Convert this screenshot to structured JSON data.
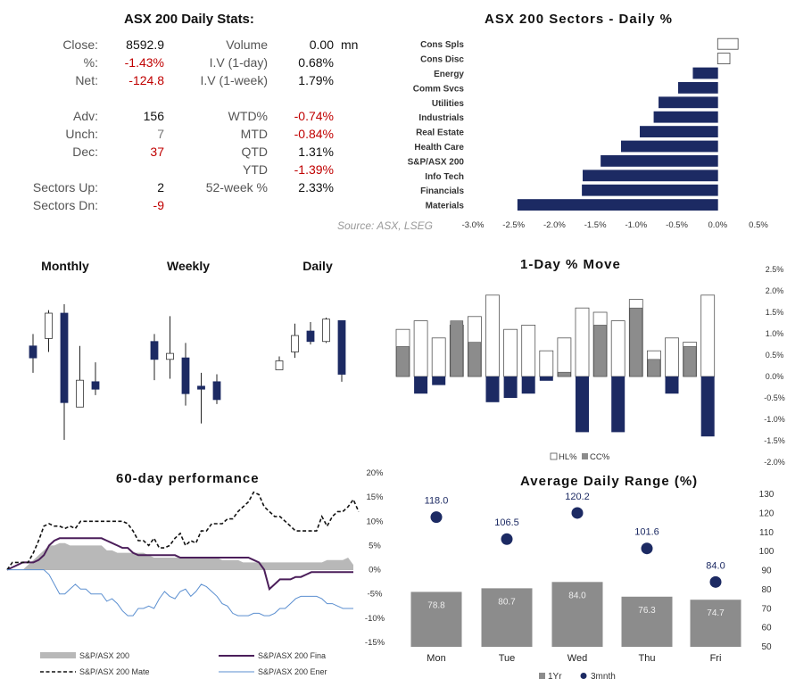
{
  "stats": {
    "title": "ASX 200 Daily Stats:",
    "rows": [
      {
        "label": "Close:",
        "value": "8592.9",
        "tone": "val",
        "label2": "Volume",
        "value2": "0.00",
        "tone2": "val",
        "unit2": "mn"
      },
      {
        "label": "%:",
        "value": "-1.43%",
        "tone": "neg",
        "label2": "I.V (1-day)",
        "value2": "0.68%",
        "tone2": "val"
      },
      {
        "label": "Net:",
        "value": "-124.8",
        "tone": "neg",
        "label2": "I.V (1-week)",
        "value2": "1.79%",
        "tone2": "val"
      },
      {
        "label": "Adv:",
        "value": "156",
        "tone": "val",
        "label2": "WTD%",
        "value2": "-0.74%",
        "tone2": "neg"
      },
      {
        "label": "Unch:",
        "value": "7",
        "tone": "gray",
        "label2": "MTD",
        "value2": "-0.84%",
        "tone2": "neg"
      },
      {
        "label": "Dec:",
        "value": "37",
        "tone": "neg",
        "label2": "QTD",
        "value2": "1.31%",
        "tone2": "val"
      },
      {
        "label": "",
        "value": "",
        "tone": "val",
        "label2": "YTD",
        "value2": "-1.39%",
        "tone2": "neg"
      },
      {
        "label": "Sectors Up:",
        "value": "2",
        "tone": "val",
        "label2": "52-week %",
        "value2": "2.33%",
        "tone2": "val"
      },
      {
        "label": "Sectors Dn:",
        "value": "-9",
        "tone": "neg",
        "label2": "",
        "value2": "",
        "tone2": "val"
      }
    ]
  },
  "source": "Source: ASX, LSEG",
  "colors": {
    "navy": "#1c2a63",
    "gray": "#8c8c8c",
    "lightgray": "#b8b8b8",
    "purple": "#4b1e5a",
    "blue": "#5b8fd0"
  },
  "chart_data": [
    {
      "id": "sectors",
      "type": "bar",
      "title": "ASX 200 Sectors - Daily %",
      "orientation": "horizontal",
      "categories": [
        "Cons Spls",
        "Cons Disc",
        "Energy",
        "Comm Svcs",
        "Utilities",
        "Industrials",
        "Real Estate",
        "Health Care",
        "S&P/ASX 200",
        "Info Tech",
        "Financials",
        "Materials"
      ],
      "values": [
        0.25,
        0.15,
        -0.3,
        -0.48,
        -0.72,
        -0.78,
        -0.95,
        -1.18,
        -1.43,
        -1.65,
        -1.66,
        -2.45
      ],
      "xlim": [
        -3.0,
        0.5
      ],
      "xticks": [
        "-3.0%",
        "-2.5%",
        "-2.0%",
        "-1.5%",
        "-1.0%",
        "-0.5%",
        "0.0%",
        "0.5%"
      ]
    },
    {
      "id": "candles",
      "type": "candlestick",
      "panels": [
        {
          "title": "Monthly",
          "candles": [
            {
              "o": 1.3,
              "h": 2.1,
              "l": -0.5,
              "c": 0.5
            },
            {
              "o": 1.8,
              "h": 3.7,
              "l": 0.9,
              "c": 3.5
            },
            {
              "o": 3.5,
              "h": 4.1,
              "l": -5.0,
              "c": -2.5
            },
            {
              "o": -2.8,
              "h": 1.3,
              "l": -2.8,
              "c": -1.0
            },
            {
              "o": -1.1,
              "h": 0.2,
              "l": -2.0,
              "c": -1.6
            }
          ]
        },
        {
          "title": "Weekly",
          "candles": [
            {
              "o": 1.6,
              "h": 2.1,
              "l": -1.0,
              "c": 0.4
            },
            {
              "o": 0.4,
              "h": 3.3,
              "l": -0.9,
              "c": 0.8
            },
            {
              "o": 0.5,
              "h": 1.5,
              "l": -2.7,
              "c": -1.9
            },
            {
              "o": -1.4,
              "h": -0.5,
              "l": -3.9,
              "c": -1.6
            },
            {
              "o": -1.1,
              "h": -0.6,
              "l": -2.6,
              "c": -2.3
            }
          ]
        },
        {
          "title": "Daily",
          "candles": [
            {
              "o": -0.3,
              "h": 0.6,
              "l": -0.3,
              "c": 0.3
            },
            {
              "o": 0.9,
              "h": 2.8,
              "l": 0.5,
              "c": 2.0
            },
            {
              "o": 2.3,
              "h": 2.9,
              "l": 1.4,
              "c": 1.6
            },
            {
              "o": 1.6,
              "h": 3.2,
              "l": 1.5,
              "c": 3.1
            },
            {
              "o": 3.0,
              "h": 3.0,
              "l": -1.1,
              "c": -0.6
            }
          ]
        }
      ]
    },
    {
      "id": "move",
      "type": "bar",
      "title": "1-Day % Move",
      "legend": [
        "HL%",
        "CC%"
      ],
      "series": [
        {
          "name": "HL%",
          "values": [
            1.1,
            1.3,
            0.9,
            1.2,
            1.4,
            1.9,
            1.1,
            1.2,
            0.6,
            0.9,
            1.6,
            1.5,
            1.3,
            1.8,
            0.6,
            0.9,
            0.8,
            1.9
          ]
        },
        {
          "name": "CC%",
          "values": [
            0.7,
            -0.4,
            -0.2,
            1.3,
            0.8,
            -0.6,
            -0.5,
            -0.4,
            -0.1,
            0.1,
            -1.3,
            1.2,
            -1.3,
            1.6,
            0.4,
            -0.4,
            0.7,
            -1.4
          ]
        }
      ],
      "ylim": [
        -2.0,
        2.5
      ],
      "yticks": [
        "2.5%",
        "2.0%",
        "1.5%",
        "1.0%",
        "0.5%",
        "0.0%",
        "-0.5%",
        "-1.0%",
        "-1.5%",
        "-2.0%"
      ]
    },
    {
      "id": "perf",
      "type": "line",
      "title": "60-day performance",
      "ylim": [
        -15,
        20
      ],
      "yticks": [
        "20%",
        "15%",
        "10%",
        "5%",
        "0%",
        "-5%",
        "-10%",
        "-15%"
      ],
      "series": [
        {
          "name": "S&P/ASX 200",
          "style": "area",
          "values": [
            0,
            0,
            0,
            0,
            1,
            2,
            3,
            4,
            5,
            5,
            5.5,
            5.5,
            5,
            5,
            5,
            5,
            5,
            5,
            5,
            4,
            4,
            3.5,
            3.5,
            3.5,
            3.5,
            3.5,
            3.5,
            3,
            2.5,
            2.5,
            2.5,
            2.5,
            2.5,
            2.5,
            2.5,
            2.5,
            2.5,
            2.5,
            2.5,
            2.5,
            2.5,
            2,
            2,
            2,
            2,
            1.5,
            1.5,
            1.5,
            1.5,
            1.5,
            1.5,
            1.5,
            1.5,
            1.5,
            1.5,
            1.5,
            1.5,
            1.5,
            1.5,
            1.5,
            1.5,
            2,
            2,
            2,
            2,
            2.5,
            1
          ]
        },
        {
          "name": "S&P/ASX 200 Fina",
          "style": "solid",
          "values": [
            0,
            0.5,
            1,
            1.5,
            1.5,
            1.5,
            2,
            3,
            5,
            6,
            6.5,
            6.5,
            6.5,
            6.5,
            6.5,
            6.5,
            6.5,
            6.5,
            6.5,
            6,
            5.5,
            5,
            4.5,
            4.5,
            3.5,
            3,
            3,
            3,
            3,
            3,
            3,
            3,
            3,
            2.5,
            2.5,
            2.5,
            2.5,
            2.5,
            2.5,
            2.5,
            2.5,
            2.5,
            2.5,
            2.5,
            2.5,
            2.5,
            2.5,
            2,
            1.5,
            0,
            -4,
            -3,
            -2,
            -2,
            -2,
            -1.5,
            -1.5,
            -1,
            -0.5,
            -0.5,
            -0.5,
            -0.5,
            -0.5,
            -0.5,
            -0.5,
            -0.5,
            -0.5
          ]
        },
        {
          "name": "S&P/ASX 200 Mate",
          "style": "dashed",
          "values": [
            0,
            1.5,
            1.5,
            1.5,
            1.5,
            3.5,
            6,
            9,
            9.5,
            9,
            9,
            8.5,
            9,
            8.5,
            10,
            10,
            10,
            10,
            10,
            10,
            10,
            10,
            10,
            9.5,
            8,
            6,
            6,
            5,
            6.5,
            4.5,
            4.5,
            5,
            6.5,
            7.5,
            5,
            6,
            5.5,
            8,
            8,
            9.5,
            9.5,
            9.5,
            10.5,
            10.5,
            12,
            13,
            14,
            16,
            15.5,
            13,
            12,
            11,
            11,
            10,
            9,
            8,
            8,
            8,
            8,
            8,
            11,
            9,
            11,
            12,
            12,
            13,
            14.5,
            12
          ]
        },
        {
          "name": "S&P/ASX 200 Ener",
          "style": "thin",
          "values": [
            0,
            0,
            0,
            0,
            0,
            0,
            0,
            0,
            -1,
            -3,
            -5,
            -5,
            -4,
            -3,
            -4,
            -4,
            -5,
            -5,
            -5,
            -6.5,
            -6,
            -7,
            -8.5,
            -9.5,
            -9.5,
            -8,
            -8,
            -7.5,
            -8,
            -6,
            -4.5,
            -5.5,
            -6,
            -4.5,
            -4,
            -5.5,
            -4.5,
            -3,
            -3.5,
            -4.5,
            -5.5,
            -7,
            -7.5,
            -9,
            -9.5,
            -9.5,
            -9.5,
            -9,
            -9,
            -9.5,
            -9.5,
            -9,
            -8,
            -8,
            -7,
            -6,
            -5.5,
            -5.5,
            -5.5,
            -5.5,
            -6,
            -7,
            -7,
            -7.5,
            -8,
            -8,
            -8
          ]
        }
      ]
    },
    {
      "id": "range",
      "type": "bar",
      "title": "Average Daily Range (%)",
      "categories": [
        "Mon",
        "Tue",
        "Wed",
        "Thu",
        "Fri"
      ],
      "series": [
        {
          "name": "1Yr",
          "values": [
            78.8,
            80.7,
            84.0,
            76.3,
            74.7
          ]
        },
        {
          "name": "3mnth",
          "values": [
            118.0,
            106.5,
            120.2,
            101.6,
            84.0
          ]
        }
      ],
      "ylim": [
        50,
        130
      ],
      "yticks": [
        "130",
        "120",
        "110",
        "100",
        "90",
        "80",
        "70",
        "60",
        "50"
      ]
    }
  ]
}
